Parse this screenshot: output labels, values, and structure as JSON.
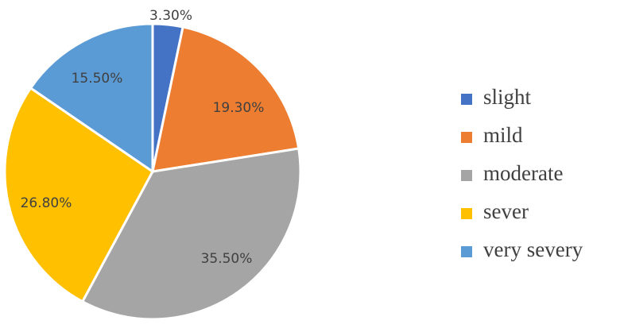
{
  "chart_data": {
    "type": "pie",
    "start_angle_deg": 0,
    "direction": "clockwise",
    "legend_position": "right",
    "slices": [
      {
        "label": "slight",
        "value": 3.3,
        "display": "3.30%",
        "color": "#4472C4"
      },
      {
        "label": "mild",
        "value": 19.3,
        "display": "19.30%",
        "color": "#ED7D31"
      },
      {
        "label": "moderate",
        "value": 35.5,
        "display": "35.50%",
        "color": "#A5A5A5"
      },
      {
        "label": "sever",
        "value": 26.8,
        "display": "26.80%",
        "color": "#FFC000"
      },
      {
        "label": "very severy",
        "value": 15.5,
        "display": "15.50%",
        "color": "#5B9BD5"
      }
    ]
  }
}
